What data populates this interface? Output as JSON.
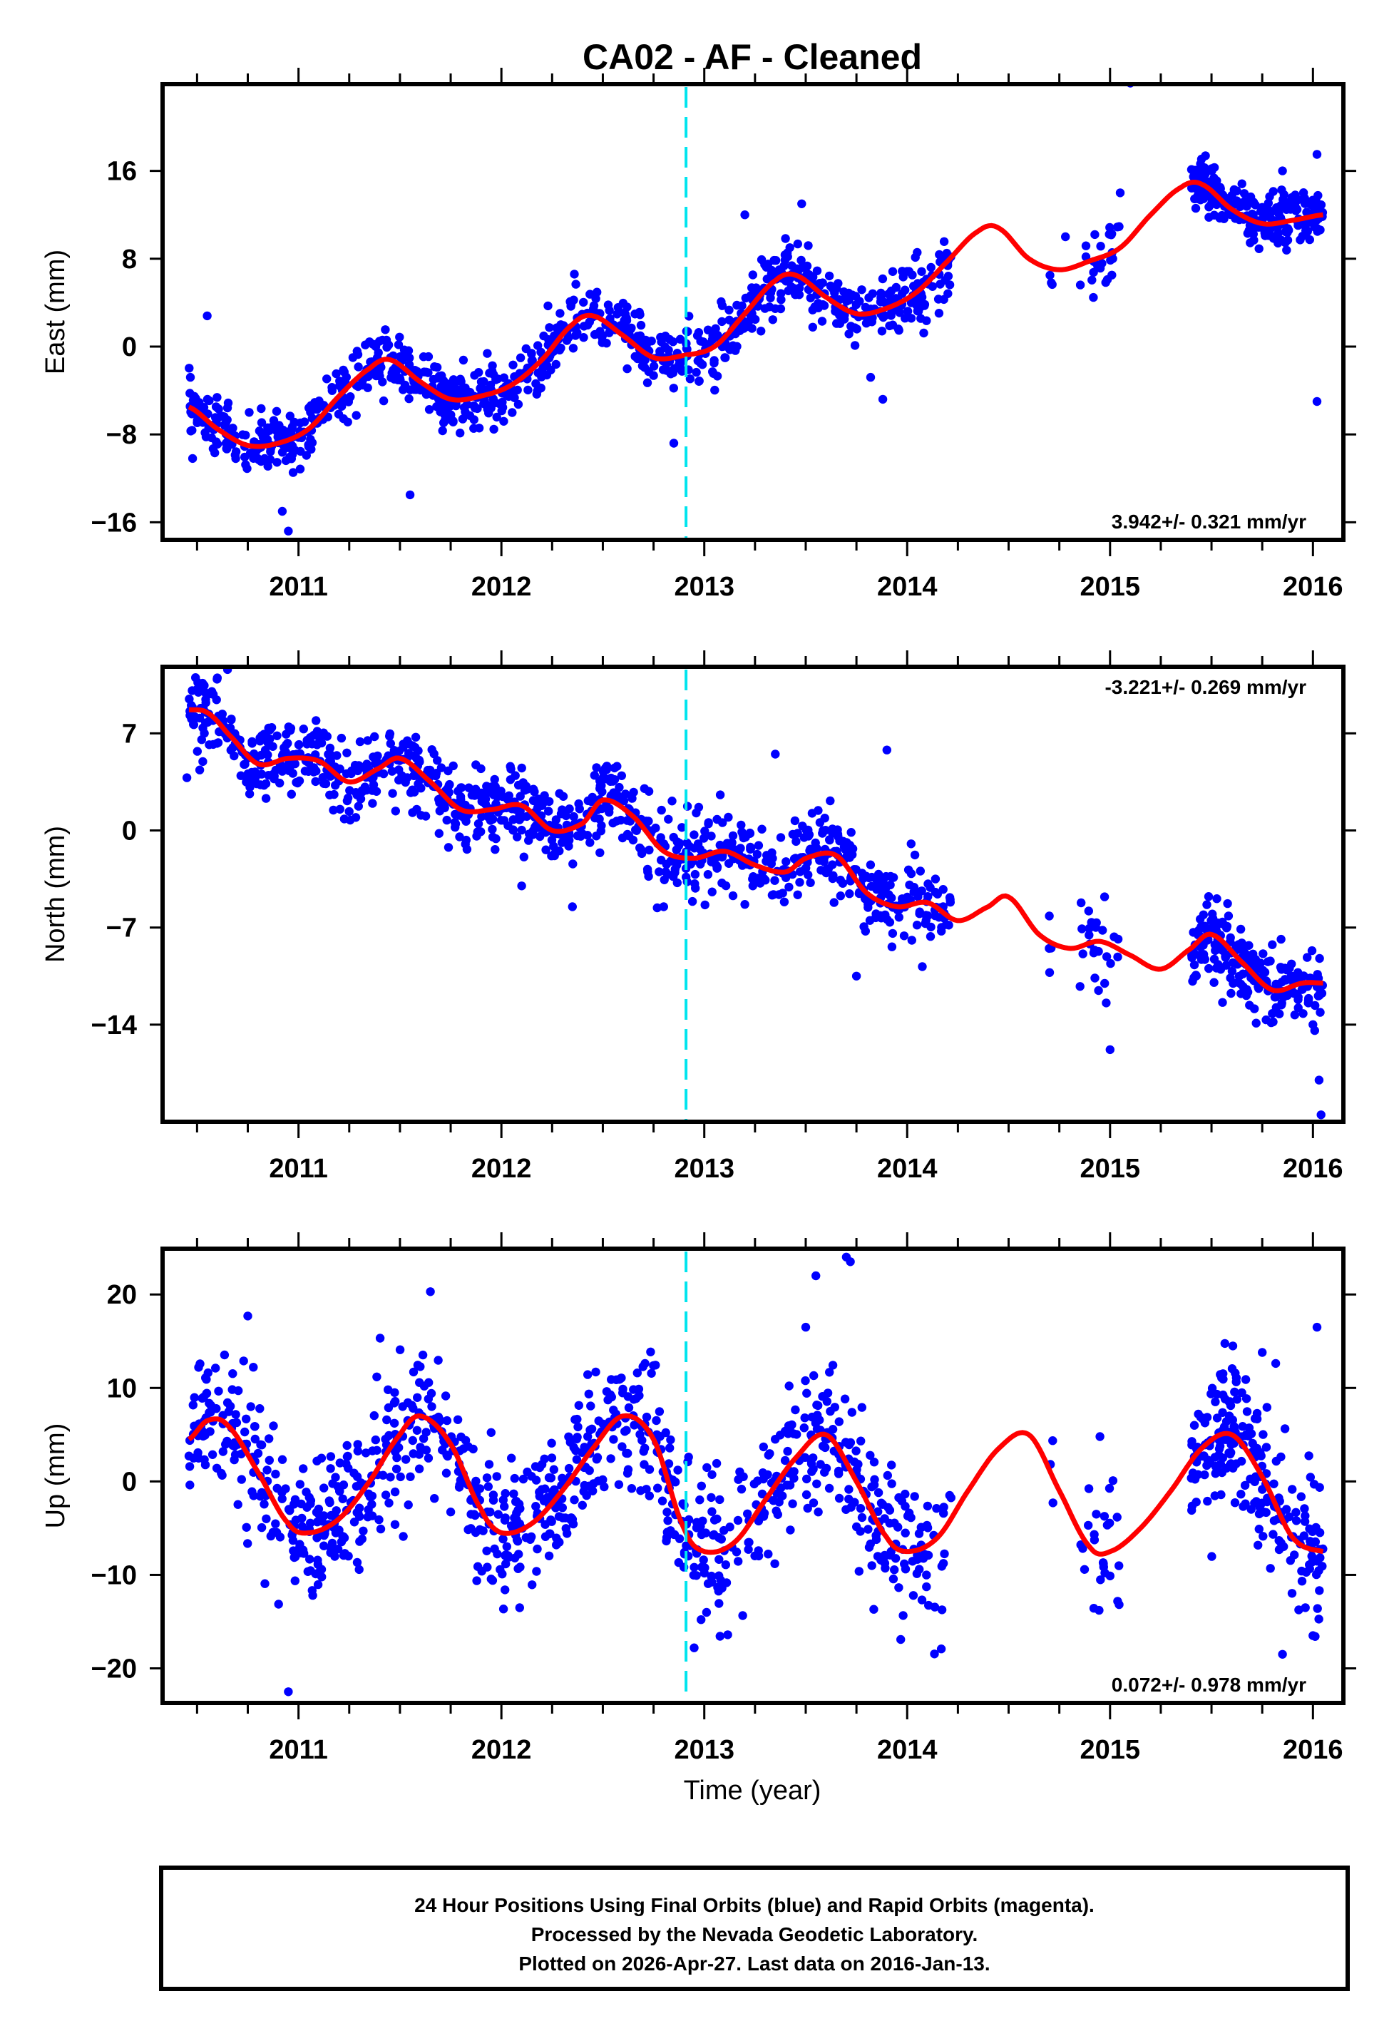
{
  "chart_data": {
    "type": "scatter",
    "title": "CA02  - AF - Cleaned",
    "xlabel": "Time (year)",
    "xlim": [
      2010.33,
      2016.15
    ],
    "x_ticks": [
      2011,
      2012,
      2013,
      2014,
      2015,
      2016
    ],
    "x_tick_labels": [
      "2011",
      "2012",
      "2013",
      "2014",
      "2015",
      "2016"
    ],
    "x_minor_step": 0.25,
    "vertical_marker": {
      "x": 2012.91,
      "color": "#00e5ee",
      "style": "dashed"
    },
    "colors": {
      "points": "#0000ff",
      "fit": "#ff0000",
      "marker": "#00e5ee",
      "frame": "#000000"
    },
    "panels": [
      {
        "name": "east",
        "ylabel": "East (mm)",
        "ylim": [
          -17.6,
          23.9
        ],
        "y_ticks": [
          16,
          8,
          0,
          -8,
          -16
        ],
        "y_tick_labels": [
          "16",
          "8",
          "0",
          "−16"
        ],
        "y_tick_labels_all": [
          "16",
          "8",
          "0",
          "−8",
          "−16"
        ],
        "rate_text": "3.942+/- 0.321 mm/yr",
        "rate_position": "bottom-right",
        "fit_curve": {
          "x": [
            2010.46,
            2010.6,
            2010.75,
            2010.9,
            2011.05,
            2011.2,
            2011.35,
            2011.45,
            2011.6,
            2011.75,
            2011.9,
            2012.05,
            2012.2,
            2012.35,
            2012.45,
            2012.6,
            2012.75,
            2012.9,
            2013.05,
            2013.2,
            2013.35,
            2013.45,
            2013.6,
            2013.75,
            2013.9,
            2014.05,
            2014.2,
            2014.35,
            2014.45,
            2014.6,
            2014.75,
            2014.9,
            2015.05,
            2015.2,
            2015.35,
            2015.45,
            2015.6,
            2015.75,
            2015.9,
            2016.05
          ],
          "y": [
            -5.5,
            -7.5,
            -9.0,
            -8.8,
            -7.5,
            -4.5,
            -2.0,
            -1.2,
            -3.2,
            -4.8,
            -4.5,
            -3.5,
            -1.2,
            2.0,
            2.8,
            1.0,
            -1.0,
            -0.8,
            0.0,
            3.0,
            6.0,
            6.5,
            4.5,
            3.0,
            3.5,
            5.0,
            7.8,
            10.5,
            10.8,
            8.0,
            7.0,
            7.8,
            9.0,
            12.0,
            14.5,
            14.8,
            12.5,
            11.2,
            11.5,
            12.0
          ]
        },
        "data_segments": [
          {
            "from": 2010.46,
            "to": 2012.05,
            "count": 420,
            "sigma": 1.3
          },
          {
            "from": 2012.05,
            "to": 2013.75,
            "count": 440,
            "sigma": 1.4
          },
          {
            "from": 2013.75,
            "to": 2014.22,
            "count": 110,
            "sigma": 1.5
          },
          {
            "from": 2014.7,
            "to": 2014.72,
            "count": 3,
            "sigma": 1.5
          },
          {
            "from": 2014.85,
            "to": 2015.05,
            "count": 25,
            "sigma": 1.8
          },
          {
            "from": 2015.4,
            "to": 2016.05,
            "count": 220,
            "sigma": 1.3
          }
        ],
        "outliers": [
          [
            2010.55,
            2.8
          ],
          [
            2010.95,
            -16.8
          ],
          [
            2010.92,
            -15.0
          ],
          [
            2011.55,
            -13.5
          ],
          [
            2012.85,
            -8.8
          ],
          [
            2013.48,
            13.0
          ],
          [
            2013.2,
            12.0
          ],
          [
            2015.05,
            14.0
          ],
          [
            2015.1,
            24.0
          ],
          [
            2016.02,
            17.5
          ],
          [
            2016.02,
            -5.0
          ],
          [
            2015.85,
            16.0
          ],
          [
            2014.78,
            10.0
          ],
          [
            2013.88,
            -4.8
          ],
          [
            2013.82,
            -2.8
          ]
        ]
      },
      {
        "name": "north",
        "ylabel": "North (mm)",
        "ylim": [
          -21.0,
          11.8
        ],
        "y_ticks": [
          7,
          0,
          -7,
          -14
        ],
        "y_tick_labels_all": [
          "7",
          "0",
          "−7",
          "−14"
        ],
        "rate_text": "-3.221+/- 0.269 mm/yr",
        "rate_position": "top-right",
        "fit_curve": {
          "x": [
            2010.46,
            2010.55,
            2010.65,
            2010.8,
            2010.95,
            2011.1,
            2011.25,
            2011.4,
            2011.5,
            2011.65,
            2011.8,
            2011.95,
            2012.1,
            2012.25,
            2012.4,
            2012.5,
            2012.65,
            2012.8,
            2012.95,
            2013.1,
            2013.25,
            2013.4,
            2013.5,
            2013.65,
            2013.8,
            2013.95,
            2014.1,
            2014.25,
            2014.4,
            2014.5,
            2014.65,
            2014.8,
            2014.95,
            2015.1,
            2015.25,
            2015.4,
            2015.5,
            2015.65,
            2015.8,
            2015.95,
            2016.05
          ],
          "y": [
            8.7,
            8.5,
            7.0,
            4.8,
            5.2,
            5.0,
            3.5,
            4.5,
            5.2,
            3.5,
            1.5,
            1.5,
            1.8,
            0.0,
            0.5,
            2.2,
            1.0,
            -1.5,
            -2.0,
            -1.5,
            -2.5,
            -3.0,
            -2.0,
            -1.8,
            -4.5,
            -5.5,
            -5.2,
            -6.5,
            -5.5,
            -4.8,
            -7.5,
            -8.5,
            -8.0,
            -9.0,
            -10.0,
            -8.5,
            -7.5,
            -9.5,
            -11.5,
            -11.0,
            -11.0
          ]
        },
        "data_segments": [
          {
            "from": 2010.46,
            "to": 2012.05,
            "count": 420,
            "sigma": 1.3
          },
          {
            "from": 2012.05,
            "to": 2013.75,
            "count": 440,
            "sigma": 1.5
          },
          {
            "from": 2013.75,
            "to": 2014.22,
            "count": 110,
            "sigma": 1.4
          },
          {
            "from": 2014.7,
            "to": 2014.72,
            "count": 3,
            "sigma": 1.5
          },
          {
            "from": 2014.85,
            "to": 2015.05,
            "count": 25,
            "sigma": 1.8
          },
          {
            "from": 2015.4,
            "to": 2016.05,
            "count": 220,
            "sigma": 1.3
          }
        ],
        "outliers": [
          [
            2010.6,
            11.0
          ],
          [
            2010.65,
            11.6
          ],
          [
            2010.45,
            3.8
          ],
          [
            2012.1,
            -4.0
          ],
          [
            2012.35,
            -5.5
          ],
          [
            2013.35,
            5.5
          ],
          [
            2013.9,
            5.8
          ],
          [
            2013.75,
            -10.5
          ],
          [
            2015.0,
            -15.8
          ],
          [
            2016.03,
            -18.0
          ],
          [
            2016.04,
            -20.5
          ],
          [
            2016.0,
            -14.0
          ],
          [
            2014.7,
            -8.5
          ],
          [
            2012.8,
            -5.5
          ]
        ]
      },
      {
        "name": "up",
        "ylabel": "Up (mm)",
        "ylim": [
          -23.7,
          24.9
        ],
        "y_ticks": [
          20,
          10,
          0,
          -10,
          -20
        ],
        "y_tick_labels_all": [
          "20",
          "10",
          "0",
          "−10",
          "−20"
        ],
        "rate_text": "0.072+/- 0.978 mm/yr",
        "rate_position": "bottom-right",
        "fit_curve": {
          "x": [
            2010.46,
            2010.55,
            2010.65,
            2010.8,
            2010.95,
            2011.05,
            2011.2,
            2011.35,
            2011.5,
            2011.6,
            2011.75,
            2011.9,
            2012.0,
            2012.15,
            2012.3,
            2012.45,
            2012.6,
            2012.75,
            2012.9,
            2013.0,
            2013.15,
            2013.3,
            2013.45,
            2013.6,
            2013.75,
            2013.9,
            2014.0,
            2014.15,
            2014.3,
            2014.45,
            2014.6,
            2014.75,
            2014.9,
            2015.0,
            2015.15,
            2015.3,
            2015.45,
            2015.6,
            2015.75,
            2015.9,
            2016.05
          ],
          "y": [
            4.5,
            6.5,
            6.0,
            1.0,
            -4.5,
            -5.5,
            -4.0,
            0.0,
            5.0,
            7.0,
            4.0,
            -3.0,
            -5.5,
            -4.5,
            -1.0,
            3.5,
            7.0,
            4.5,
            -5.0,
            -7.5,
            -6.5,
            -2.0,
            2.5,
            5.0,
            0.0,
            -6.0,
            -7.5,
            -6.0,
            -1.0,
            3.5,
            5.0,
            -1.0,
            -7.0,
            -7.5,
            -5.0,
            -1.0,
            3.5,
            5.0,
            0.5,
            -6.0,
            -7.5
          ]
        },
        "data_segments": [
          {
            "from": 2010.46,
            "to": 2012.05,
            "count": 420,
            "sigma": 3.8
          },
          {
            "from": 2012.05,
            "to": 2013.75,
            "count": 440,
            "sigma": 3.8
          },
          {
            "from": 2013.75,
            "to": 2014.22,
            "count": 110,
            "sigma": 4.0
          },
          {
            "from": 2014.7,
            "to": 2014.72,
            "count": 3,
            "sigma": 3.0
          },
          {
            "from": 2014.85,
            "to": 2015.05,
            "count": 25,
            "sigma": 4.5
          },
          {
            "from": 2015.4,
            "to": 2016.05,
            "count": 220,
            "sigma": 4.0
          }
        ],
        "outliers": [
          [
            2010.95,
            -22.5
          ],
          [
            2012.95,
            -17.8
          ],
          [
            2013.55,
            22.0
          ],
          [
            2013.7,
            24.0
          ],
          [
            2013.72,
            23.5
          ],
          [
            2013.5,
            16.5
          ],
          [
            2011.65,
            20.3
          ],
          [
            2010.75,
            17.7
          ],
          [
            2016.02,
            16.5
          ],
          [
            2016.0,
            -16.5
          ],
          [
            2015.75,
            13.8
          ],
          [
            2014.95,
            4.8
          ],
          [
            2015.85,
            -18.5
          ]
        ]
      }
    ]
  },
  "footer": {
    "line1": "24 Hour Positions Using Final Orbits (blue) and Rapid Orbits (magenta).",
    "line2": "Processed by the Nevada Geodetic Laboratory.",
    "line3": "Plotted on 2026-Apr-27. Last data on 2016-Jan-13."
  }
}
